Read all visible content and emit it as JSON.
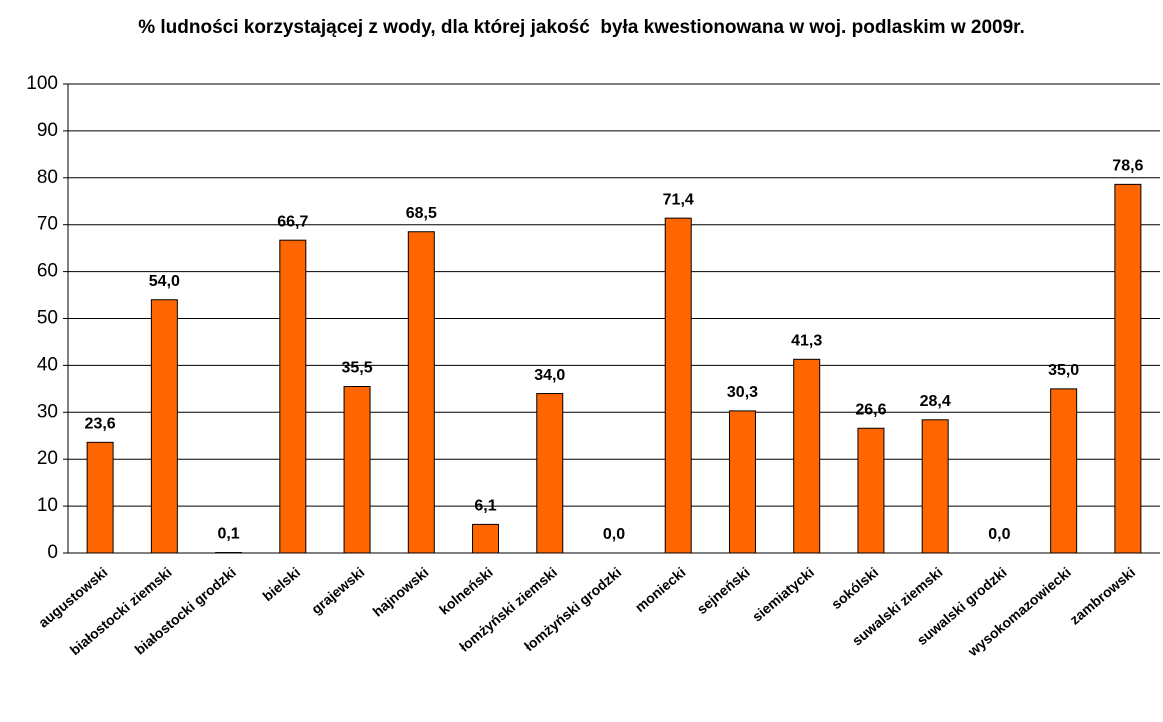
{
  "chart_data": {
    "type": "bar",
    "title": "% ludności korzystającej z wody, dla której jakość  była kwestionowana w woj. podlaskim w 2009r.",
    "categories": [
      "augustowski",
      "białostocki ziemski",
      "białostocki grodzki",
      "bielski",
      "grajewski",
      "hajnowski",
      "kolneński",
      "łomżyński ziemski",
      "łomżyński grodzki",
      "moniecki",
      "sejneński",
      "siemiatycki",
      "sokólski",
      "suwalski ziemski",
      "suwalski grodzki",
      "wysokomazowiecki",
      "zambrowski"
    ],
    "values": [
      23.6,
      54.0,
      0.1,
      66.7,
      35.5,
      68.5,
      6.1,
      34.0,
      0.0,
      71.4,
      30.3,
      41.3,
      26.6,
      28.4,
      0.0,
      35.0,
      78.6
    ],
    "value_labels": [
      "23,6",
      "54,0",
      "0,1",
      "66,7",
      "35,5",
      "68,5",
      "6,1",
      "34,0",
      "0,0",
      "71,4",
      "30,3",
      "41,3",
      "26,6",
      "28,4",
      "0,0",
      "35,0",
      "78,6"
    ],
    "color": "#ff6600",
    "ylim": [
      0,
      100
    ],
    "yticks": [
      0,
      10,
      20,
      30,
      40,
      50,
      60,
      70,
      80,
      90,
      100
    ],
    "grid": true
  }
}
